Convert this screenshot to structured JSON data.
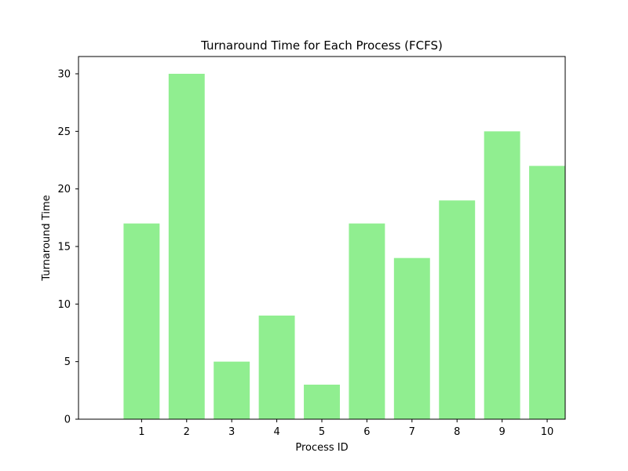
{
  "chart_data": {
    "type": "bar",
    "title": "Turnaround Time for Each Process (FCFS)",
    "xlabel": "Process ID",
    "ylabel": "Turnaround Time",
    "categories": [
      "1",
      "2",
      "3",
      "4",
      "5",
      "6",
      "7",
      "8",
      "9",
      "10"
    ],
    "values": [
      17,
      30,
      5,
      9,
      3,
      17,
      14,
      19,
      25,
      22
    ],
    "yticks": [
      "0",
      "5",
      "10",
      "15",
      "20",
      "25",
      "30"
    ],
    "ylim": [
      0,
      31.5
    ],
    "grid": false,
    "legend": "none",
    "bar_color": "#90EE90"
  }
}
